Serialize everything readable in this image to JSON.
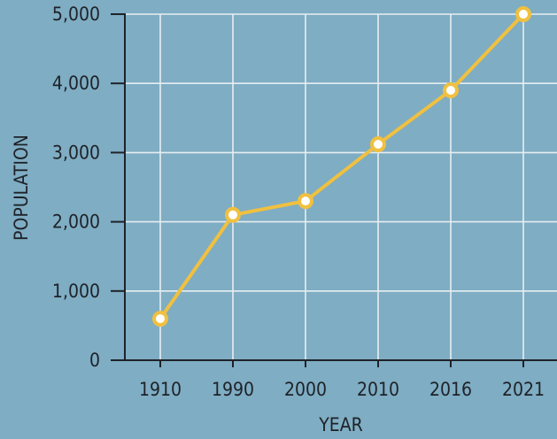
{
  "chart_data": {
    "type": "line",
    "title": "",
    "xlabel": "YEAR",
    "ylabel": "POPULATION",
    "categories": [
      "1910",
      "1990",
      "2000",
      "2010",
      "2016",
      "2021"
    ],
    "series": [
      {
        "values": [
          600,
          2100,
          2300,
          3120,
          3900,
          5000
        ]
      }
    ],
    "ylim": [
      0,
      5000
    ],
    "yticks": [
      0,
      1000,
      2000,
      3000,
      4000,
      5000
    ],
    "ytick_labels": [
      "0",
      "1,000",
      "2,000",
      "3,000",
      "4,000",
      "5,000"
    ],
    "grid": true,
    "legend": "none"
  },
  "colors": {
    "background": "#7fadc3",
    "line": "#f0c040",
    "marker_fill": "#ffffff",
    "grid": "#e6eef2",
    "axis": "#1e2228",
    "text": "#1e2228"
  }
}
